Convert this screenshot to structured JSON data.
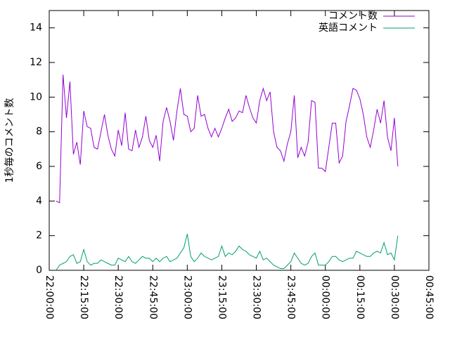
{
  "chart_data": {
    "type": "line",
    "ylabel": "1秒毎のコメント数",
    "x": [
      "22:03:00",
      "22:04:30",
      "22:06:00",
      "22:07:30",
      "22:09:00",
      "22:10:30",
      "22:12:00",
      "22:13:30",
      "22:15:00",
      "22:16:30",
      "22:18:00",
      "22:19:30",
      "22:21:00",
      "22:22:30",
      "22:24:00",
      "22:25:30",
      "22:27:00",
      "22:28:30",
      "22:30:00",
      "22:31:30",
      "22:33:00",
      "22:34:30",
      "22:36:00",
      "22:37:30",
      "22:39:00",
      "22:40:30",
      "22:42:00",
      "22:43:30",
      "22:45:00",
      "22:46:30",
      "22:48:00",
      "22:49:30",
      "22:51:00",
      "22:52:30",
      "22:54:00",
      "22:55:30",
      "22:57:00",
      "22:58:30",
      "23:00:00",
      "23:01:30",
      "23:03:00",
      "23:04:30",
      "23:06:00",
      "23:07:30",
      "23:09:00",
      "23:10:30",
      "23:12:00",
      "23:13:30",
      "23:15:00",
      "23:16:30",
      "23:18:00",
      "23:19:30",
      "23:21:00",
      "23:22:30",
      "23:24:00",
      "23:25:30",
      "23:27:00",
      "23:28:30",
      "23:30:00",
      "23:31:30",
      "23:33:00",
      "23:34:30",
      "23:36:00",
      "23:37:30",
      "23:39:00",
      "23:40:30",
      "23:42:00",
      "23:43:30",
      "23:45:00",
      "23:46:30",
      "23:48:00",
      "23:49:30",
      "23:51:00",
      "23:52:30",
      "23:54:00",
      "23:55:30",
      "23:57:00",
      "23:58:30",
      "00:00:00",
      "00:01:30",
      "00:03:00",
      "00:04:30",
      "00:06:00",
      "00:07:30",
      "00:09:00",
      "00:10:30",
      "00:12:00",
      "00:13:30",
      "00:15:00",
      "00:16:30",
      "00:18:00",
      "00:19:30",
      "00:21:00",
      "00:22:30",
      "00:24:00",
      "00:25:30",
      "00:27:00",
      "00:28:30",
      "00:30:00",
      "00:31:30"
    ],
    "series": [
      {
        "name": "コメント数",
        "color": "#9400d3",
        "values": [
          4.0,
          3.9,
          11.3,
          8.8,
          10.9,
          6.7,
          7.4,
          6.1,
          9.2,
          8.3,
          8.2,
          7.1,
          7.0,
          8.0,
          9.0,
          7.8,
          7.0,
          6.6,
          8.1,
          7.2,
          9.1,
          7.0,
          6.9,
          8.1,
          7.1,
          7.7,
          8.9,
          7.5,
          7.1,
          7.8,
          6.3,
          8.6,
          9.4,
          8.6,
          7.5,
          9.2,
          10.5,
          9.0,
          8.9,
          8.0,
          8.2,
          10.1,
          8.9,
          9.0,
          8.2,
          7.7,
          8.2,
          7.7,
          8.2,
          8.8,
          9.3,
          8.6,
          8.8,
          9.2,
          9.1,
          10.1,
          9.4,
          8.8,
          8.5,
          9.8,
          10.5,
          9.8,
          10.3,
          8.0,
          7.1,
          6.9,
          6.3,
          7.3,
          8.0,
          10.1,
          6.5,
          7.1,
          6.6,
          7.4,
          9.8,
          9.7,
          5.9,
          5.9,
          5.7,
          7.1,
          8.5,
          8.5,
          6.2,
          6.6,
          8.6,
          9.5,
          10.5,
          10.4,
          9.9,
          9.0,
          7.7,
          7.1,
          8.1,
          9.3,
          8.5,
          9.8,
          7.7,
          6.9,
          8.8,
          6.0
        ]
      },
      {
        "name": "英語コメント",
        "color": "#009e73",
        "values": [
          0.0,
          0.3,
          0.4,
          0.5,
          0.8,
          0.9,
          0.4,
          0.5,
          1.2,
          0.5,
          0.3,
          0.4,
          0.4,
          0.6,
          0.5,
          0.4,
          0.3,
          0.3,
          0.7,
          0.6,
          0.5,
          0.8,
          0.5,
          0.4,
          0.6,
          0.8,
          0.7,
          0.7,
          0.5,
          0.7,
          0.5,
          0.7,
          0.8,
          0.5,
          0.6,
          0.7,
          1.0,
          1.3,
          2.1,
          0.8,
          0.5,
          0.7,
          1.0,
          0.8,
          0.7,
          0.6,
          0.7,
          0.8,
          1.4,
          0.8,
          1.0,
          0.9,
          1.1,
          1.4,
          1.2,
          1.1,
          0.9,
          0.8,
          0.7,
          1.1,
          0.6,
          0.7,
          0.5,
          0.3,
          0.2,
          0.1,
          0.1,
          0.3,
          0.5,
          1.0,
          0.7,
          0.4,
          0.3,
          0.4,
          0.8,
          1.0,
          0.3,
          0.3,
          0.3,
          0.5,
          0.8,
          0.8,
          0.6,
          0.5,
          0.6,
          0.7,
          0.7,
          1.1,
          1.0,
          0.9,
          0.8,
          0.8,
          1.0,
          1.1,
          1.0,
          1.6,
          0.9,
          1.0,
          0.6,
          2.0
        ]
      }
    ],
    "xlim": [
      "22:00:00",
      "00:45:00"
    ],
    "xticks": [
      "22:00:00",
      "22:15:00",
      "22:30:00",
      "22:45:00",
      "23:00:00",
      "23:15:00",
      "23:30:00",
      "23:45:00",
      "00:00:00",
      "00:15:00",
      "00:30:00",
      "00:45:00"
    ],
    "ylim": [
      0,
      15
    ],
    "yticks": [
      0,
      2,
      4,
      6,
      8,
      10,
      12,
      14
    ],
    "legend": "top-right",
    "grid": false
  }
}
